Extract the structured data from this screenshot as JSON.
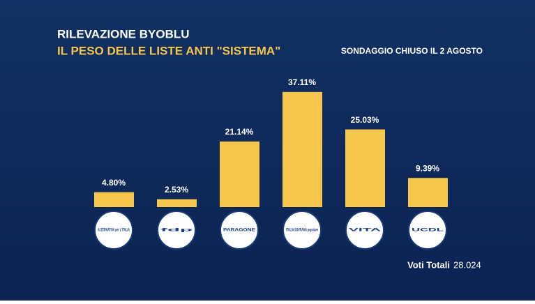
{
  "chart_data": {
    "type": "bar",
    "title": "RILEVAZIONE BYOBLU",
    "subtitle": "IL PESO DELLE LISTE ANTI \"SISTEMA\"",
    "annotation": "SONDAGGIO CHIUSO IL 2 AGOSTO",
    "footer": {
      "label": "Voti Totali",
      "value": "28.024"
    },
    "categories": [
      "ALTERNATIVA per L'ITALIA",
      "fdp",
      "PARAGONE",
      "ITALIA SOVRANA popolare",
      "VITA",
      "UCDL"
    ],
    "values": [
      4.8,
      2.53,
      21.14,
      37.11,
      25.03,
      9.39
    ],
    "value_labels": [
      "4.80%",
      "2.53%",
      "21.14%",
      "37.11%",
      "25.03%",
      "9.39%"
    ],
    "color": "#f7c64d",
    "ylim": [
      0,
      40
    ]
  }
}
